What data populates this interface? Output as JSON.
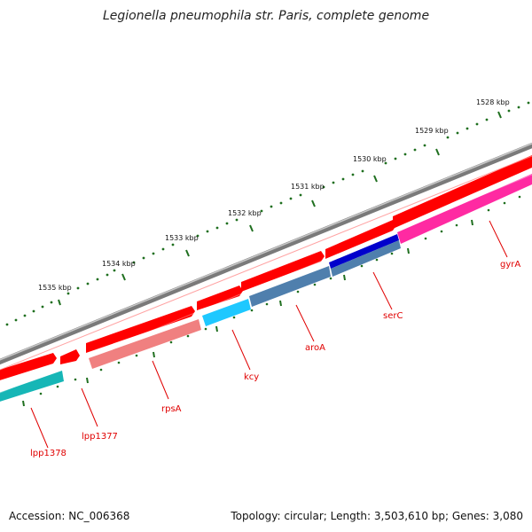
{
  "title": "Legionella pneumophila str. Paris, complete genome",
  "accession": "Accession: NC_006368",
  "topology": "Topology: circular; Length: 3,503,610 bp; Genes: 3,080",
  "scale_labels": [
    "1528 kbp",
    "1529 kbp",
    "1530 kbp",
    "1531 kbp",
    "1532 kbp",
    "1533 kbp",
    "1534 kbp",
    "1535 kbp"
  ],
  "genes": [
    "lpp1378",
    "lpp1377",
    "rpsA",
    "kcy",
    "aroA",
    "serC",
    "gyrA"
  ],
  "colors": {
    "backbone": "#7a7a7a",
    "forward_gene": "#ff0000",
    "reverse_teal": "#16b6b6",
    "reverse_salmon": "#f08080",
    "reverse_sky": "#1ec8ff",
    "reverse_steel": "#4f7fad",
    "reverse_blue": "#0000cc",
    "reverse_pink": "#ff2aa2",
    "ticks": "#1f6f1f",
    "labels": "#e00000"
  }
}
